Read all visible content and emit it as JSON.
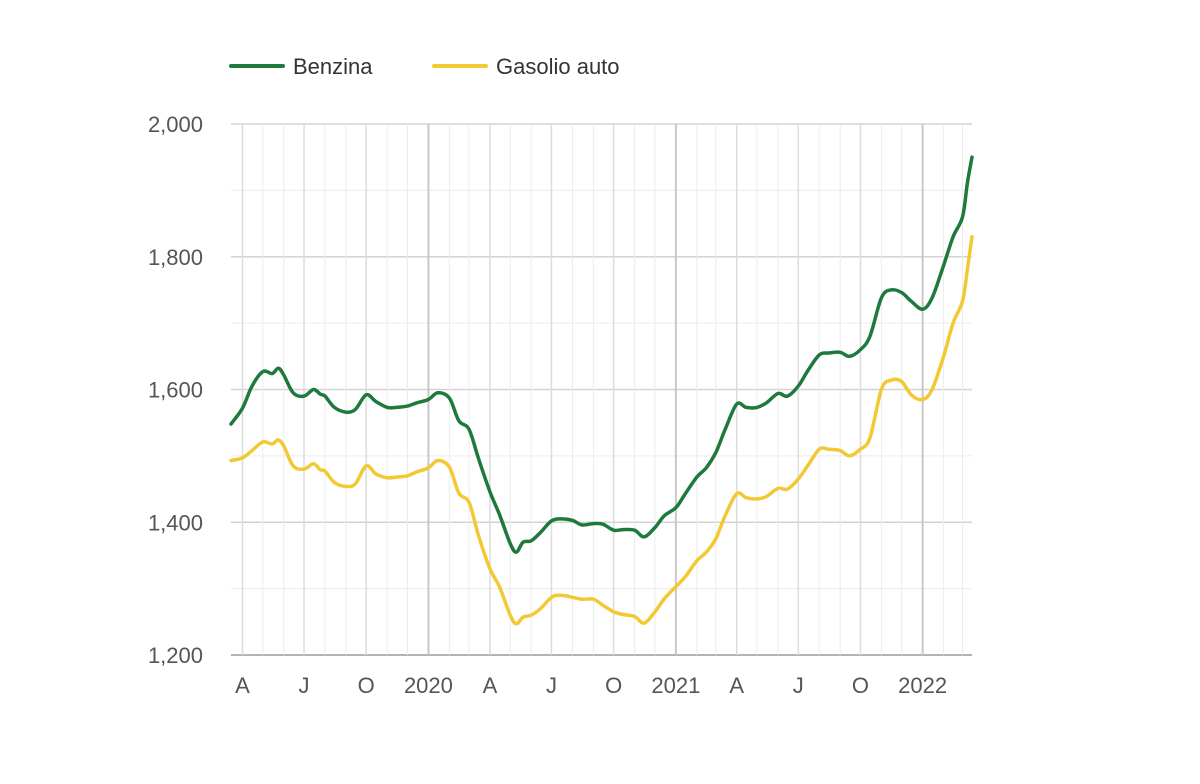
{
  "chart_data": {
    "type": "line",
    "title": "",
    "xlabel": "",
    "ylabel": "",
    "ylim": [
      1.2,
      2.0
    ],
    "xlim": [
      "2019-03-15",
      "2022-03-15"
    ],
    "grid": true,
    "legend_position": "top-left",
    "y_ticks": [
      {
        "value": 1.2,
        "label": "1,200"
      },
      {
        "value": 1.4,
        "label": "1,400"
      },
      {
        "value": 1.6,
        "label": "1,600"
      },
      {
        "value": 1.8,
        "label": "1,800"
      },
      {
        "value": 2.0,
        "label": "2,000"
      }
    ],
    "x_ticks": [
      {
        "date": "2019-04-01",
        "label": "A"
      },
      {
        "date": "2019-07-01",
        "label": "J"
      },
      {
        "date": "2019-10-01",
        "label": "O"
      },
      {
        "date": "2020-01-01",
        "label": "2020"
      },
      {
        "date": "2020-04-01",
        "label": "A"
      },
      {
        "date": "2020-07-01",
        "label": "J"
      },
      {
        "date": "2020-10-01",
        "label": "O"
      },
      {
        "date": "2021-01-01",
        "label": "2021"
      },
      {
        "date": "2021-04-01",
        "label": "A"
      },
      {
        "date": "2021-07-01",
        "label": "J"
      },
      {
        "date": "2021-10-01",
        "label": "O"
      },
      {
        "date": "2022-01-01",
        "label": "2022"
      }
    ],
    "series": [
      {
        "name": "Benzina",
        "color": "#1e7a3c",
        "points": [
          [
            "2019-03-15",
            1.548
          ],
          [
            "2019-04-01",
            1.572
          ],
          [
            "2019-04-15",
            1.605
          ],
          [
            "2019-05-01",
            1.627
          ],
          [
            "2019-05-15",
            1.624
          ],
          [
            "2019-05-24",
            1.632
          ],
          [
            "2019-06-01",
            1.622
          ],
          [
            "2019-06-15",
            1.595
          ],
          [
            "2019-07-01",
            1.59
          ],
          [
            "2019-07-15",
            1.6
          ],
          [
            "2019-07-25",
            1.593
          ],
          [
            "2019-08-01",
            1.59
          ],
          [
            "2019-08-15",
            1.573
          ],
          [
            "2019-09-01",
            1.566
          ],
          [
            "2019-09-15",
            1.57
          ],
          [
            "2019-10-01",
            1.592
          ],
          [
            "2019-10-15",
            1.582
          ],
          [
            "2019-11-01",
            1.573
          ],
          [
            "2019-11-15",
            1.573
          ],
          [
            "2019-12-01",
            1.575
          ],
          [
            "2019-12-15",
            1.58
          ],
          [
            "2020-01-01",
            1.585
          ],
          [
            "2020-01-15",
            1.595
          ],
          [
            "2020-02-01",
            1.587
          ],
          [
            "2020-02-15",
            1.553
          ],
          [
            "2020-03-01",
            1.54
          ],
          [
            "2020-03-15",
            1.496
          ],
          [
            "2020-04-01",
            1.446
          ],
          [
            "2020-04-15",
            1.412
          ],
          [
            "2020-05-01",
            1.368
          ],
          [
            "2020-05-10",
            1.355
          ],
          [
            "2020-05-20",
            1.37
          ],
          [
            "2020-06-01",
            1.372
          ],
          [
            "2020-06-15",
            1.385
          ],
          [
            "2020-07-01",
            1.402
          ],
          [
            "2020-07-15",
            1.405
          ],
          [
            "2020-08-01",
            1.403
          ],
          [
            "2020-08-15",
            1.396
          ],
          [
            "2020-09-01",
            1.398
          ],
          [
            "2020-09-15",
            1.397
          ],
          [
            "2020-10-01",
            1.388
          ],
          [
            "2020-10-15",
            1.389
          ],
          [
            "2020-11-01",
            1.388
          ],
          [
            "2020-11-15",
            1.378
          ],
          [
            "2020-12-01",
            1.392
          ],
          [
            "2020-12-15",
            1.41
          ],
          [
            "2021-01-01",
            1.422
          ],
          [
            "2021-01-15",
            1.443
          ],
          [
            "2021-02-01",
            1.468
          ],
          [
            "2021-02-15",
            1.482
          ],
          [
            "2021-03-01",
            1.505
          ],
          [
            "2021-03-15",
            1.54
          ],
          [
            "2021-04-01",
            1.578
          ],
          [
            "2021-04-15",
            1.573
          ],
          [
            "2021-05-01",
            1.573
          ],
          [
            "2021-05-15",
            1.58
          ],
          [
            "2021-06-01",
            1.594
          ],
          [
            "2021-06-15",
            1.59
          ],
          [
            "2021-07-01",
            1.605
          ],
          [
            "2021-07-15",
            1.628
          ],
          [
            "2021-08-01",
            1.652
          ],
          [
            "2021-08-15",
            1.655
          ],
          [
            "2021-09-01",
            1.656
          ],
          [
            "2021-09-15",
            1.65
          ],
          [
            "2021-10-01",
            1.66
          ],
          [
            "2021-10-15",
            1.68
          ],
          [
            "2021-11-01",
            1.738
          ],
          [
            "2021-11-15",
            1.75
          ],
          [
            "2021-12-01",
            1.746
          ],
          [
            "2021-12-15",
            1.733
          ],
          [
            "2022-01-01",
            1.721
          ],
          [
            "2022-01-15",
            1.738
          ],
          [
            "2022-02-01",
            1.787
          ],
          [
            "2022-02-15",
            1.83
          ],
          [
            "2022-03-01",
            1.86
          ],
          [
            "2022-03-08",
            1.91
          ],
          [
            "2022-03-15",
            1.95
          ]
        ]
      },
      {
        "name": "Gasolio auto",
        "color": "#f2c935",
        "points": [
          [
            "2019-03-15",
            1.493
          ],
          [
            "2019-04-01",
            1.497
          ],
          [
            "2019-04-15",
            1.508
          ],
          [
            "2019-05-01",
            1.521
          ],
          [
            "2019-05-15",
            1.518
          ],
          [
            "2019-05-24",
            1.524
          ],
          [
            "2019-06-01",
            1.515
          ],
          [
            "2019-06-15",
            1.485
          ],
          [
            "2019-07-01",
            1.48
          ],
          [
            "2019-07-15",
            1.488
          ],
          [
            "2019-07-25",
            1.479
          ],
          [
            "2019-08-01",
            1.477
          ],
          [
            "2019-08-15",
            1.46
          ],
          [
            "2019-09-01",
            1.454
          ],
          [
            "2019-09-15",
            1.458
          ],
          [
            "2019-10-01",
            1.485
          ],
          [
            "2019-10-15",
            1.473
          ],
          [
            "2019-11-01",
            1.467
          ],
          [
            "2019-11-15",
            1.468
          ],
          [
            "2019-12-01",
            1.47
          ],
          [
            "2019-12-15",
            1.476
          ],
          [
            "2020-01-01",
            1.482
          ],
          [
            "2020-01-15",
            1.493
          ],
          [
            "2020-02-01",
            1.483
          ],
          [
            "2020-02-15",
            1.444
          ],
          [
            "2020-03-01",
            1.43
          ],
          [
            "2020-03-15",
            1.38
          ],
          [
            "2020-04-01",
            1.33
          ],
          [
            "2020-04-15",
            1.303
          ],
          [
            "2020-05-01",
            1.26
          ],
          [
            "2020-05-10",
            1.247
          ],
          [
            "2020-05-20",
            1.257
          ],
          [
            "2020-06-01",
            1.26
          ],
          [
            "2020-06-15",
            1.27
          ],
          [
            "2020-07-01",
            1.287
          ],
          [
            "2020-07-15",
            1.29
          ],
          [
            "2020-08-01",
            1.287
          ],
          [
            "2020-08-15",
            1.284
          ],
          [
            "2020-09-01",
            1.284
          ],
          [
            "2020-09-15",
            1.275
          ],
          [
            "2020-10-01",
            1.265
          ],
          [
            "2020-10-15",
            1.261
          ],
          [
            "2020-11-01",
            1.258
          ],
          [
            "2020-11-15",
            1.248
          ],
          [
            "2020-12-01",
            1.265
          ],
          [
            "2020-12-15",
            1.285
          ],
          [
            "2021-01-01",
            1.303
          ],
          [
            "2021-01-15",
            1.318
          ],
          [
            "2021-02-01",
            1.342
          ],
          [
            "2021-02-15",
            1.355
          ],
          [
            "2021-03-01",
            1.375
          ],
          [
            "2021-03-15",
            1.41
          ],
          [
            "2021-04-01",
            1.443
          ],
          [
            "2021-04-15",
            1.437
          ],
          [
            "2021-05-01",
            1.435
          ],
          [
            "2021-05-15",
            1.439
          ],
          [
            "2021-06-01",
            1.451
          ],
          [
            "2021-06-15",
            1.45
          ],
          [
            "2021-07-01",
            1.465
          ],
          [
            "2021-07-15",
            1.485
          ],
          [
            "2021-08-01",
            1.51
          ],
          [
            "2021-08-15",
            1.51
          ],
          [
            "2021-09-01",
            1.508
          ],
          [
            "2021-09-15",
            1.5
          ],
          [
            "2021-10-01",
            1.51
          ],
          [
            "2021-10-15",
            1.527
          ],
          [
            "2021-11-01",
            1.6
          ],
          [
            "2021-11-15",
            1.614
          ],
          [
            "2021-12-01",
            1.612
          ],
          [
            "2021-12-15",
            1.592
          ],
          [
            "2022-01-01",
            1.585
          ],
          [
            "2022-01-15",
            1.6
          ],
          [
            "2022-02-01",
            1.65
          ],
          [
            "2022-02-15",
            1.7
          ],
          [
            "2022-03-01",
            1.733
          ],
          [
            "2022-03-08",
            1.78
          ],
          [
            "2022-03-15",
            1.83
          ]
        ]
      }
    ]
  }
}
